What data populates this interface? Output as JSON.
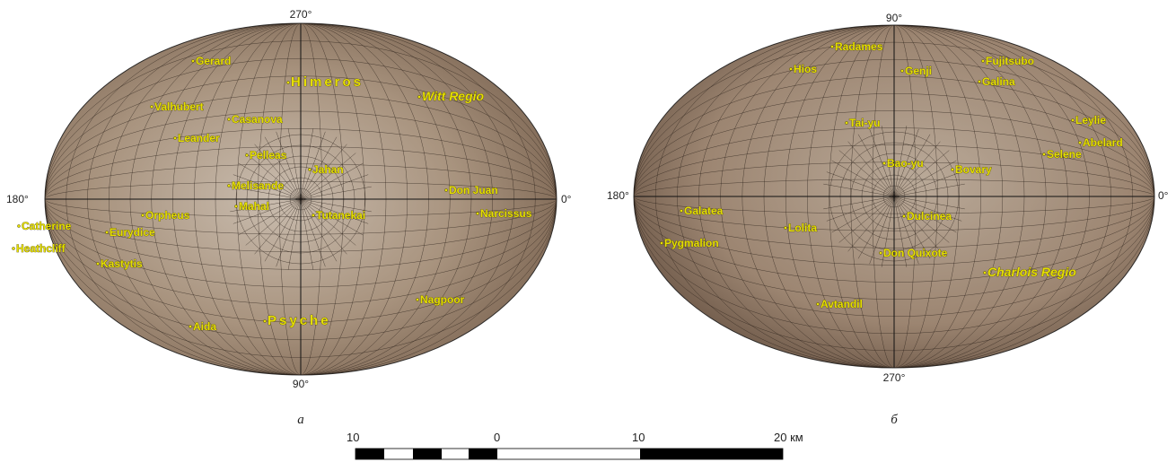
{
  "map_a": {
    "caption": "а",
    "axis_labels": {
      "top": "270°",
      "bottom": "90°",
      "left": "180°",
      "right": "0°"
    },
    "features": [
      "Gerard",
      "Himeros",
      "Witt Regio",
      "Valhubert",
      "Casanova",
      "Leander",
      "Pelleas",
      "Jahan",
      "Melisande",
      "Don Juan",
      "Mahal",
      "Orpheus",
      "Tutanekai",
      "Narcissus",
      "Catherine",
      "Eurydice",
      "Heathcliff",
      "Kastytis",
      "Nagpoor",
      "Psyche",
      "Aida"
    ]
  },
  "map_b": {
    "caption": "б",
    "axis_labels": {
      "top": "90°",
      "bottom": "270°",
      "left": "180°",
      "right": "0°"
    },
    "features": [
      "Radames",
      "Hios",
      "Genji",
      "Fujitsubo",
      "Galina",
      "Tai-yu",
      "Leylie",
      "Abelard",
      "Selene",
      "Bao-yu",
      "Bovary",
      "Galatea",
      "Dulcinea",
      "Lolita",
      "Pygmalion",
      "Don Quixote",
      "Charlois Regio",
      "Avtandil"
    ]
  },
  "scale_bar": {
    "labels": [
      "10",
      "0",
      "10",
      "20 км"
    ]
  }
}
